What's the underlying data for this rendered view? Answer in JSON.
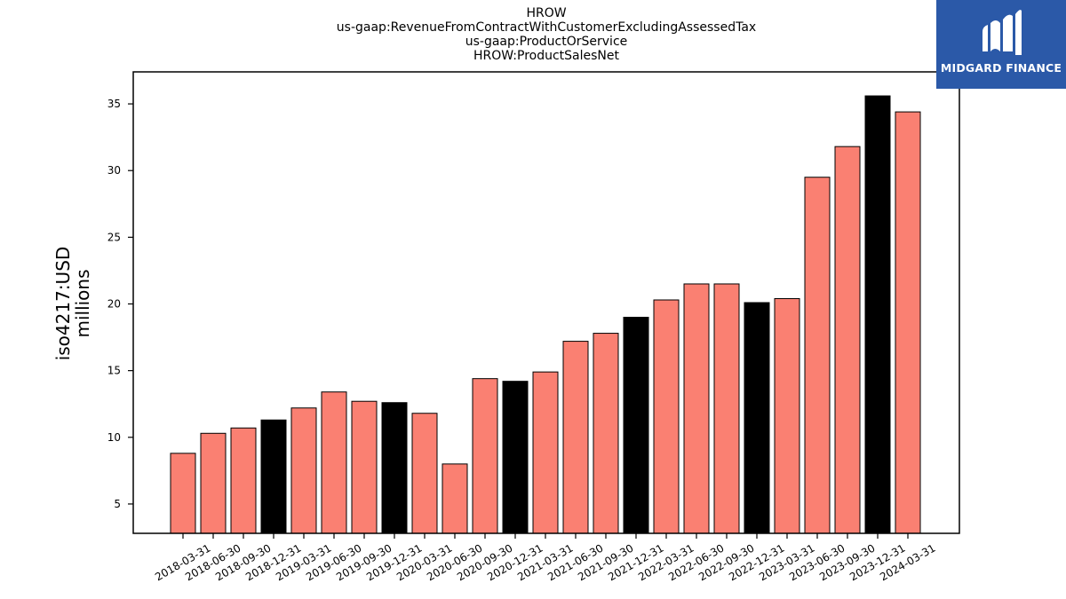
{
  "header": {
    "title_lines": [
      "HROW",
      "us-gaap:RevenueFromContractWithCustomerExcludingAssessedTax",
      "us-gaap:ProductOrService",
      "HROW:ProductSalesNet"
    ]
  },
  "axis": {
    "ylabel_lines": [
      "iso4217:USD",
      "millions"
    ]
  },
  "logo": {
    "name": "MIDGARD FINANCE",
    "icon": "midgard-logo-icon",
    "background": "#2b59a8"
  },
  "chart_data": {
    "type": "bar",
    "categories": [
      "2018-03-31",
      "2018-06-30",
      "2018-09-30",
      "2018-12-31",
      "2019-03-31",
      "2019-06-30",
      "2019-09-30",
      "2019-12-31",
      "2020-03-31",
      "2020-06-30",
      "2020-09-30",
      "2020-12-31",
      "2021-03-31",
      "2021-06-30",
      "2021-09-30",
      "2021-12-31",
      "2022-03-31",
      "2022-06-30",
      "2022-09-30",
      "2022-12-31",
      "2023-03-31",
      "2023-06-30",
      "2023-09-30",
      "2023-12-31",
      "2024-03-31"
    ],
    "values": [
      8.8,
      10.3,
      10.7,
      11.3,
      12.2,
      13.4,
      12.7,
      12.6,
      11.8,
      8.0,
      14.4,
      14.2,
      14.9,
      17.2,
      17.8,
      19.0,
      20.3,
      21.5,
      21.5,
      20.1,
      20.4,
      29.5,
      31.8,
      35.6,
      34.4
    ],
    "year_end_color": "#000000",
    "quarter_color": "#fa8072",
    "ylim": [
      2.8,
      37.4
    ],
    "yticks": [
      5,
      10,
      15,
      20,
      25,
      30,
      35
    ],
    "grid": false,
    "legend": "none"
  }
}
